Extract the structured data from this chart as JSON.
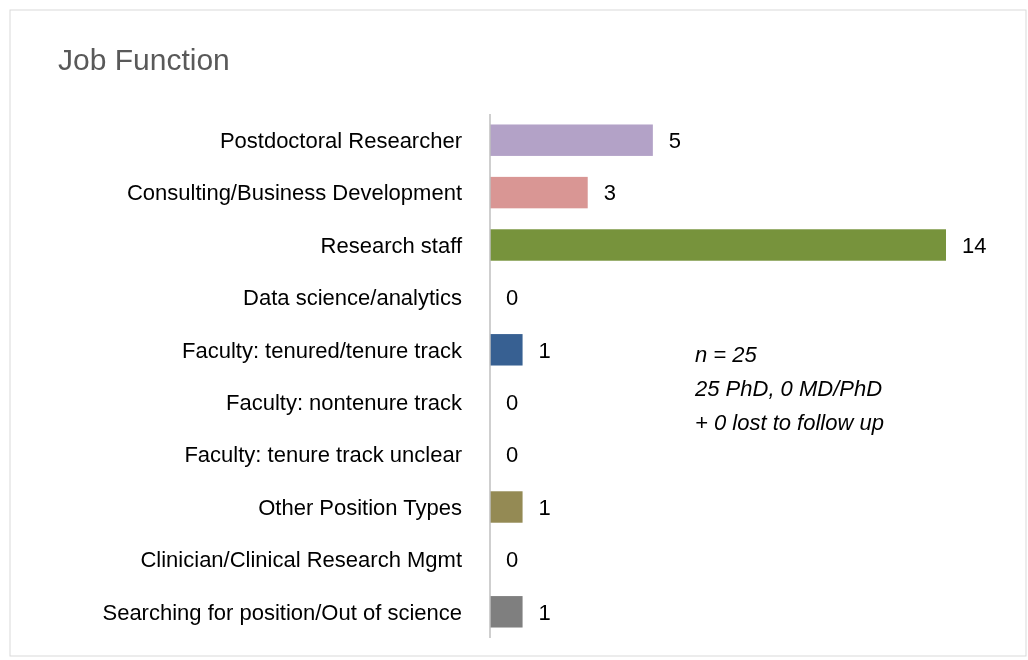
{
  "chart_data": {
    "type": "bar",
    "orientation": "horizontal",
    "title": "Job Function",
    "categories": [
      "Postdoctoral Researcher",
      "Consulting/Business Development",
      "Research staff",
      "Data science/analytics",
      "Faculty: tenured/tenure track",
      "Faculty: nontenure track",
      "Faculty: tenure track unclear",
      "Other Position Types",
      "Clinician/Clinical Research Mgmt",
      "Searching for position/Out of science"
    ],
    "values": [
      5,
      3,
      14,
      0,
      1,
      0,
      0,
      1,
      0,
      1
    ],
    "colors": [
      "#b3a2c7",
      "#d99694",
      "#77933c",
      "#4f81bd",
      "#376092",
      "#4f81bd",
      "#4f81bd",
      "#948a54",
      "#4f81bd",
      "#7f7f7f"
    ],
    "data_labels": true,
    "annotations": [
      "n = 25",
      "25 PhD, 0 MD/PhD",
      "+ 0 lost to follow up"
    ]
  }
}
